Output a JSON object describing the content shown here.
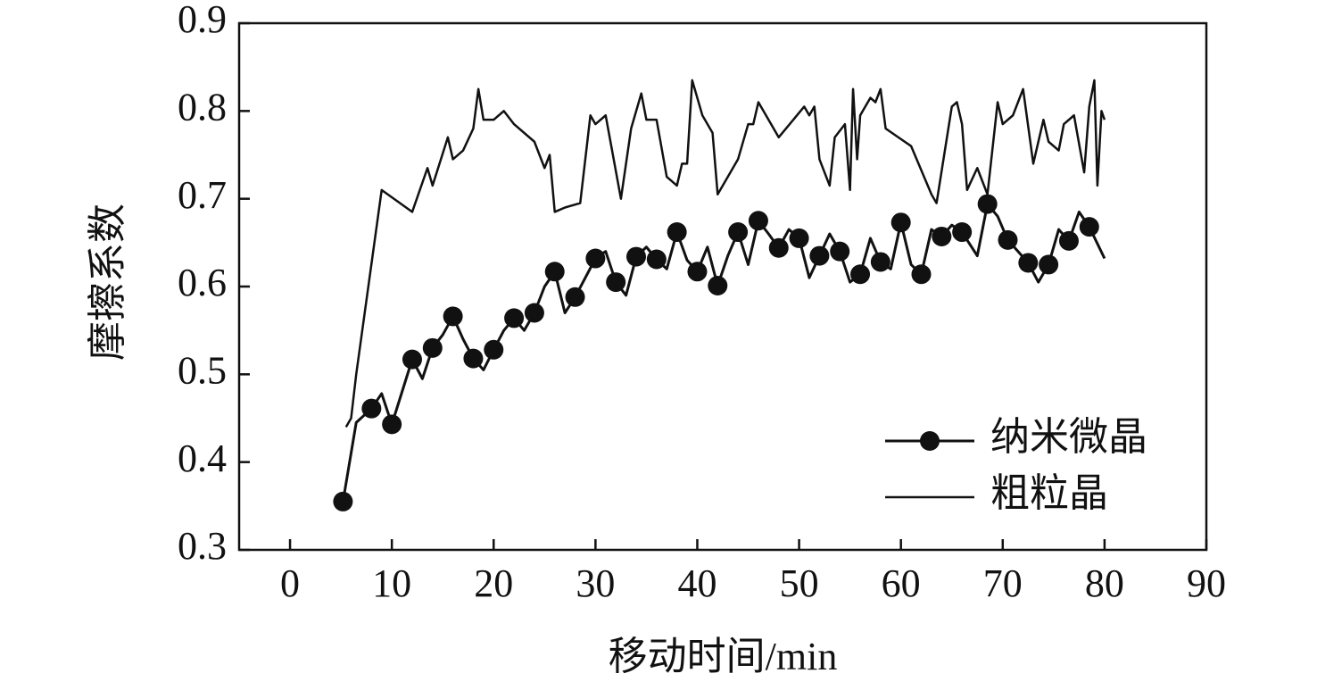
{
  "chart_data": {
    "type": "line",
    "xlabel": "移动时间/min",
    "ylabel": "摩擦系数",
    "xlim": [
      -5,
      90
    ],
    "xticks": [
      0,
      10,
      20,
      30,
      40,
      50,
      60,
      70,
      80,
      90
    ],
    "ylim": [
      0.3,
      0.9
    ],
    "yticks": [
      0.3,
      0.4,
      0.5,
      0.6,
      0.7,
      0.8,
      0.9
    ],
    "legend": "lower right",
    "series": [
      {
        "name": "纳米微晶",
        "color": "#111111",
        "marker": "circle",
        "marker_every": 2,
        "x": [
          5.2,
          6.5,
          8,
          9,
          10,
          11,
          12,
          13,
          14,
          15,
          16,
          17,
          18,
          19,
          20,
          21,
          22,
          23,
          24,
          25,
          26,
          27,
          28,
          29,
          30,
          31,
          32,
          33,
          34,
          35,
          36,
          37,
          38,
          39,
          40,
          41,
          42,
          43,
          44,
          45,
          46,
          47,
          48,
          49,
          50,
          51,
          52,
          53,
          54,
          55,
          56,
          57,
          58,
          59,
          60,
          61,
          62,
          63,
          64,
          65,
          66,
          67.5,
          68.5,
          69.5,
          70.5,
          71.5,
          72.5,
          73.5,
          74.5,
          75.5,
          76.5,
          77.5,
          78.5,
          80
        ],
        "values": [
          0.355,
          0.445,
          0.461,
          0.478,
          0.443,
          0.48,
          0.517,
          0.495,
          0.53,
          0.545,
          0.566,
          0.54,
          0.518,
          0.505,
          0.528,
          0.55,
          0.564,
          0.55,
          0.57,
          0.6,
          0.617,
          0.57,
          0.588,
          0.61,
          0.632,
          0.64,
          0.605,
          0.59,
          0.634,
          0.645,
          0.631,
          0.62,
          0.662,
          0.63,
          0.617,
          0.645,
          0.601,
          0.635,
          0.662,
          0.625,
          0.675,
          0.66,
          0.644,
          0.665,
          0.655,
          0.61,
          0.635,
          0.66,
          0.64,
          0.605,
          0.614,
          0.655,
          0.628,
          0.62,
          0.673,
          0.625,
          0.614,
          0.665,
          0.657,
          0.67,
          0.662,
          0.635,
          0.694,
          0.68,
          0.653,
          0.64,
          0.627,
          0.605,
          0.625,
          0.665,
          0.652,
          0.685,
          0.668,
          0.632
        ]
      },
      {
        "name": "粗粒晶",
        "color": "#111111",
        "marker": "none",
        "x": [
          5.5,
          6,
          6.5,
          9,
          12,
          13.5,
          14,
          15.5,
          16,
          17,
          18,
          18.5,
          19,
          20,
          21,
          22,
          24,
          25,
          25.5,
          26,
          27,
          28.5,
          29.5,
          30,
          31,
          32.5,
          33.5,
          34.5,
          35,
          36,
          37,
          38,
          38.5,
          39,
          39.5,
          40.5,
          41.5,
          42,
          44,
          45,
          45.5,
          46,
          48,
          50.5,
          51,
          51.5,
          52,
          53,
          53.5,
          54.5,
          55,
          55.3,
          55.7,
          56,
          57,
          57.5,
          58,
          58.5,
          61,
          63,
          63.5,
          65,
          65.5,
          66,
          66.5,
          67.5,
          68.5,
          69.5,
          70,
          71,
          72,
          73,
          74,
          74.5,
          75.5,
          76,
          77,
          78,
          78.5,
          79,
          79.3,
          79.7,
          80
        ],
        "values": [
          0.44,
          0.45,
          0.5,
          0.71,
          0.685,
          0.735,
          0.715,
          0.77,
          0.745,
          0.755,
          0.78,
          0.825,
          0.79,
          0.79,
          0.8,
          0.785,
          0.765,
          0.735,
          0.75,
          0.685,
          0.69,
          0.695,
          0.795,
          0.785,
          0.795,
          0.7,
          0.78,
          0.82,
          0.79,
          0.79,
          0.725,
          0.715,
          0.74,
          0.74,
          0.835,
          0.795,
          0.775,
          0.705,
          0.745,
          0.785,
          0.785,
          0.81,
          0.77,
          0.805,
          0.795,
          0.805,
          0.745,
          0.715,
          0.77,
          0.785,
          0.71,
          0.825,
          0.745,
          0.795,
          0.815,
          0.81,
          0.825,
          0.78,
          0.76,
          0.705,
          0.695,
          0.805,
          0.81,
          0.785,
          0.71,
          0.735,
          0.705,
          0.81,
          0.785,
          0.795,
          0.825,
          0.74,
          0.79,
          0.765,
          0.755,
          0.785,
          0.795,
          0.73,
          0.805,
          0.835,
          0.715,
          0.8,
          0.79
        ]
      }
    ]
  }
}
